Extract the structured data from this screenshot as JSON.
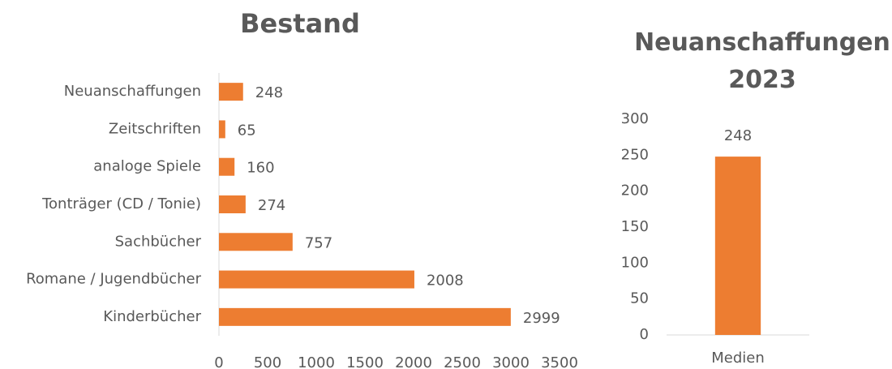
{
  "chart_data": [
    {
      "type": "bar",
      "horizontal": true,
      "title": "Bestand",
      "categories": [
        "Neuanschaffungen",
        "Zeitschriften",
        "analoge Spiele",
        "Tonträger (CD / Tonie)",
        "Sachbücher",
        "Romane / Jugendbücher",
        "Kinderbücher"
      ],
      "values": [
        248,
        65,
        160,
        274,
        757,
        2008,
        2999
      ],
      "color": "#ed7d31",
      "xlim": [
        0,
        3500
      ],
      "xticks": [
        0,
        500,
        1000,
        1500,
        2000,
        2500,
        3000,
        3500
      ],
      "grid": false
    },
    {
      "type": "bar",
      "horizontal": false,
      "title": "Neuanschaffungen 2023",
      "categories": [
        "Medien"
      ],
      "values": [
        248
      ],
      "color": "#ed7d31",
      "ylim": [
        0,
        300
      ],
      "yticks": [
        0,
        50,
        100,
        150,
        200,
        250,
        300
      ],
      "grid": false
    }
  ]
}
